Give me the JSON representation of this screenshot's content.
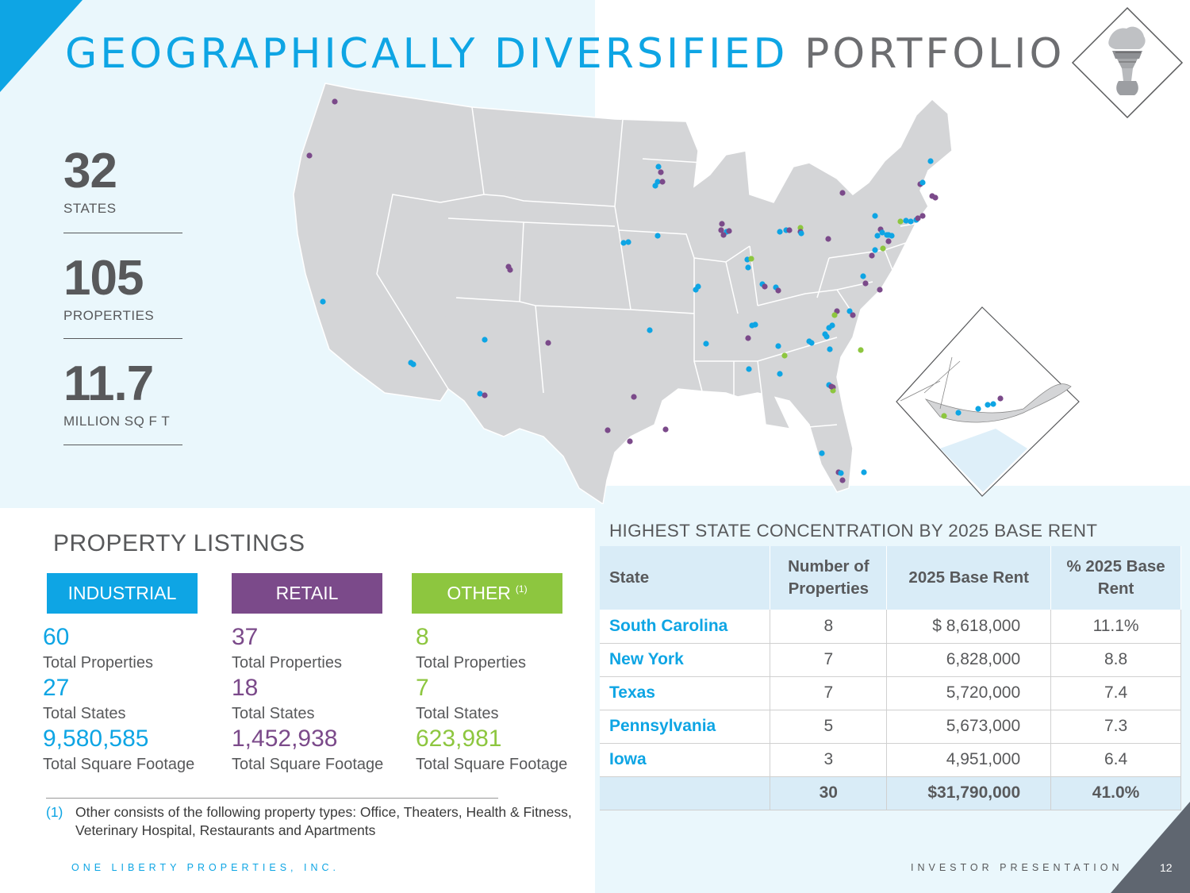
{
  "title": {
    "part1": "GEOGRAPHICALLY DIVERSIFIED",
    "part2": "PORTFOLIO"
  },
  "colors": {
    "industrial": "#0ea5e4",
    "retail": "#7b4a8a",
    "other": "#8dc63f",
    "title_blue": "#0ea5e4",
    "title_gray": "#6d6e71"
  },
  "stats": [
    {
      "value": "32",
      "label": "STATES"
    },
    {
      "value": "105",
      "label": "PROPERTIES"
    },
    {
      "value": "11.7",
      "label": "MILLION SQ  F T"
    }
  ],
  "listings": {
    "title": "PROPERTY LISTINGS",
    "categories": [
      {
        "name": "INDUSTRIAL",
        "properties": "60",
        "properties_label": "Total Properties",
        "states": "27",
        "states_label": "Total States",
        "sqft": "9,580,585",
        "sqft_label": "Total Square Footage"
      },
      {
        "name": "RETAIL",
        "properties": "37",
        "properties_label": "Total Properties",
        "states": "18",
        "states_label": "Total States",
        "sqft": "1,452,938",
        "sqft_label": "Total Square Footage"
      },
      {
        "name": "OTHER",
        "footnote_marker": "(1)",
        "properties": "8",
        "properties_label": "Total Properties",
        "states": "7",
        "states_label": "Total States",
        "sqft": "623,981",
        "sqft_label": "Total Square Footage"
      }
    ]
  },
  "footnote": {
    "marker": "(1)",
    "text": "Other consists of the following property types: Office, Theaters, Health & Fitness, Veterinary Hospital, Restaurants and Apartments"
  },
  "concentration": {
    "title": "HIGHEST STATE CONCENTRATION BY 2025 BASE RENT",
    "headers": [
      "State",
      "Number of Properties",
      "2025 Base Rent",
      "% 2025 Base Rent"
    ],
    "rows": [
      {
        "state": "South Carolina",
        "count": "8",
        "rent": "$ 8,618,000",
        "pct": "11.1%"
      },
      {
        "state": "New York",
        "count": "7",
        "rent": "6,828,000",
        "pct": "8.8"
      },
      {
        "state": "Texas",
        "count": "7",
        "rent": "5,720,000",
        "pct": "7.4"
      },
      {
        "state": "Pennsylvania",
        "count": "5",
        "rent": "5,673,000",
        "pct": "7.3"
      },
      {
        "state": "Iowa",
        "count": "3",
        "rent": "4,951,000",
        "pct": "6.4"
      }
    ],
    "total": {
      "state": "",
      "count": "30",
      "rent": "$31,790,000",
      "pct": "41.0%"
    }
  },
  "footer": {
    "company": "ONE LIBERTY PROPERTIES, INC.",
    "doc": "INVESTOR PRESENTATION",
    "page": "12"
  }
}
